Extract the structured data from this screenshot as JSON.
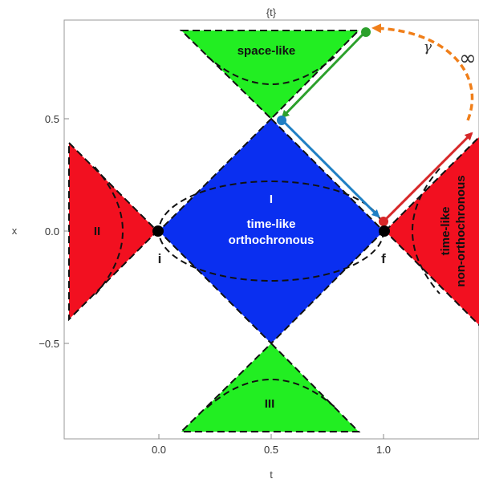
{
  "plot_label": "{t}",
  "x_axis_label": "t",
  "y_axis_label": "x",
  "x_ticks": [
    "0.0",
    "0.5",
    "1.0"
  ],
  "y_ticks": [
    "0.5",
    "0.0",
    "−0.5"
  ],
  "regions": {
    "space_like": "space-like",
    "region_I": "I",
    "time_like_orthochronous_1": "time-like",
    "time_like_orthochronous_2": "orthochronous",
    "region_II": "II",
    "region_III": "III",
    "time_like_non_ortho_1": "time-like",
    "time_like_non_ortho_2": "non-orthochronous"
  },
  "points": {
    "initial": "i",
    "final": "f"
  },
  "annotations": {
    "gamma": "γ",
    "infinity": "∞"
  },
  "colors": {
    "space_like": "#22ee22",
    "time_like_orthochronous": "#0a2ff0",
    "time_like_non_orthochronous": "#f21020",
    "arrow_blue": "#1f7fc4",
    "arrow_green": "#2ca02c",
    "arrow_red": "#d62728",
    "arc_orange": "#f07f1a"
  }
}
